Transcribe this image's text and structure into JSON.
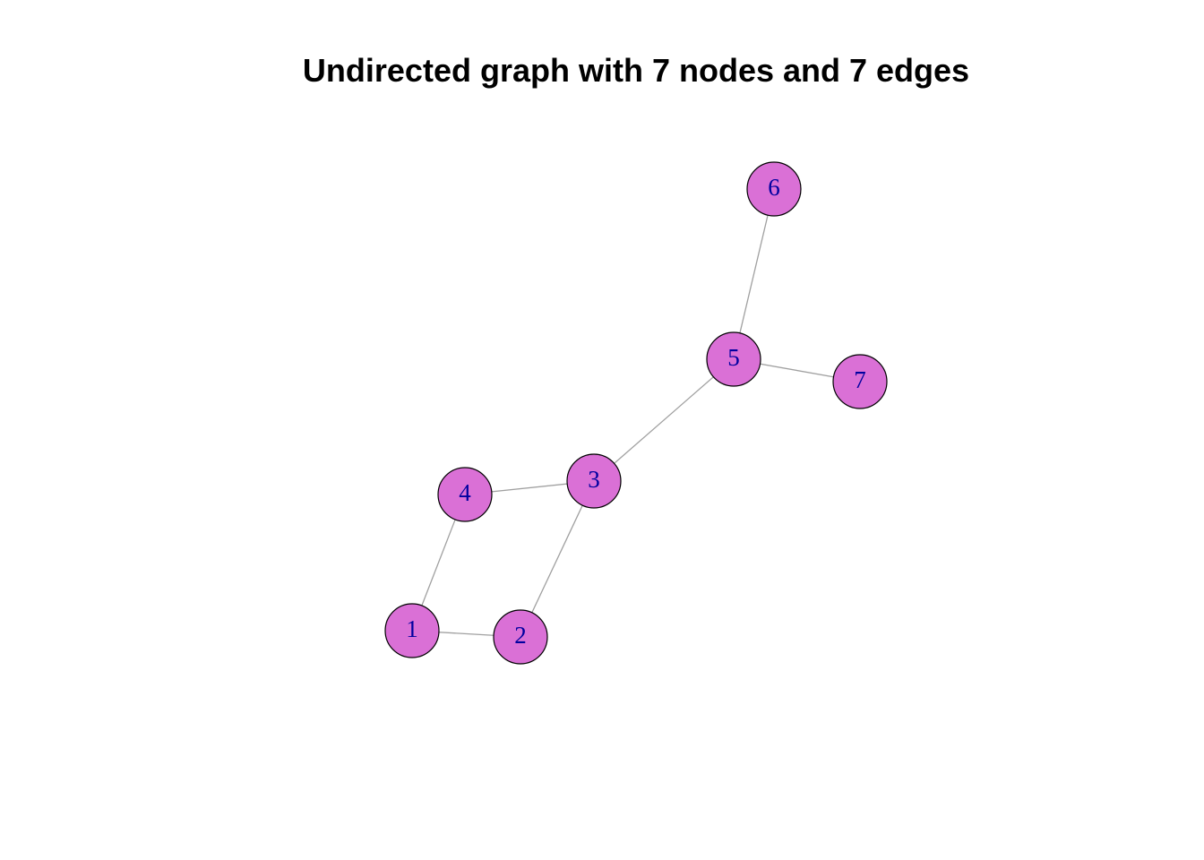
{
  "title": "Undirected graph with 7 nodes and 7 edges",
  "colors": {
    "node_fill": "#DA70D6",
    "node_stroke": "#000000",
    "label": "#0000A0",
    "edge": "#A0A0A0"
  },
  "nodes": [
    {
      "id": "1",
      "label": "1"
    },
    {
      "id": "2",
      "label": "2"
    },
    {
      "id": "3",
      "label": "3"
    },
    {
      "id": "4",
      "label": "4"
    },
    {
      "id": "5",
      "label": "5"
    },
    {
      "id": "6",
      "label": "6"
    },
    {
      "id": "7",
      "label": "7"
    }
  ],
  "edges": [
    {
      "source": "1",
      "target": "2"
    },
    {
      "source": "1",
      "target": "4"
    },
    {
      "source": "2",
      "target": "3"
    },
    {
      "source": "3",
      "target": "4"
    },
    {
      "source": "3",
      "target": "5"
    },
    {
      "source": "5",
      "target": "6"
    },
    {
      "source": "5",
      "target": "7"
    }
  ]
}
